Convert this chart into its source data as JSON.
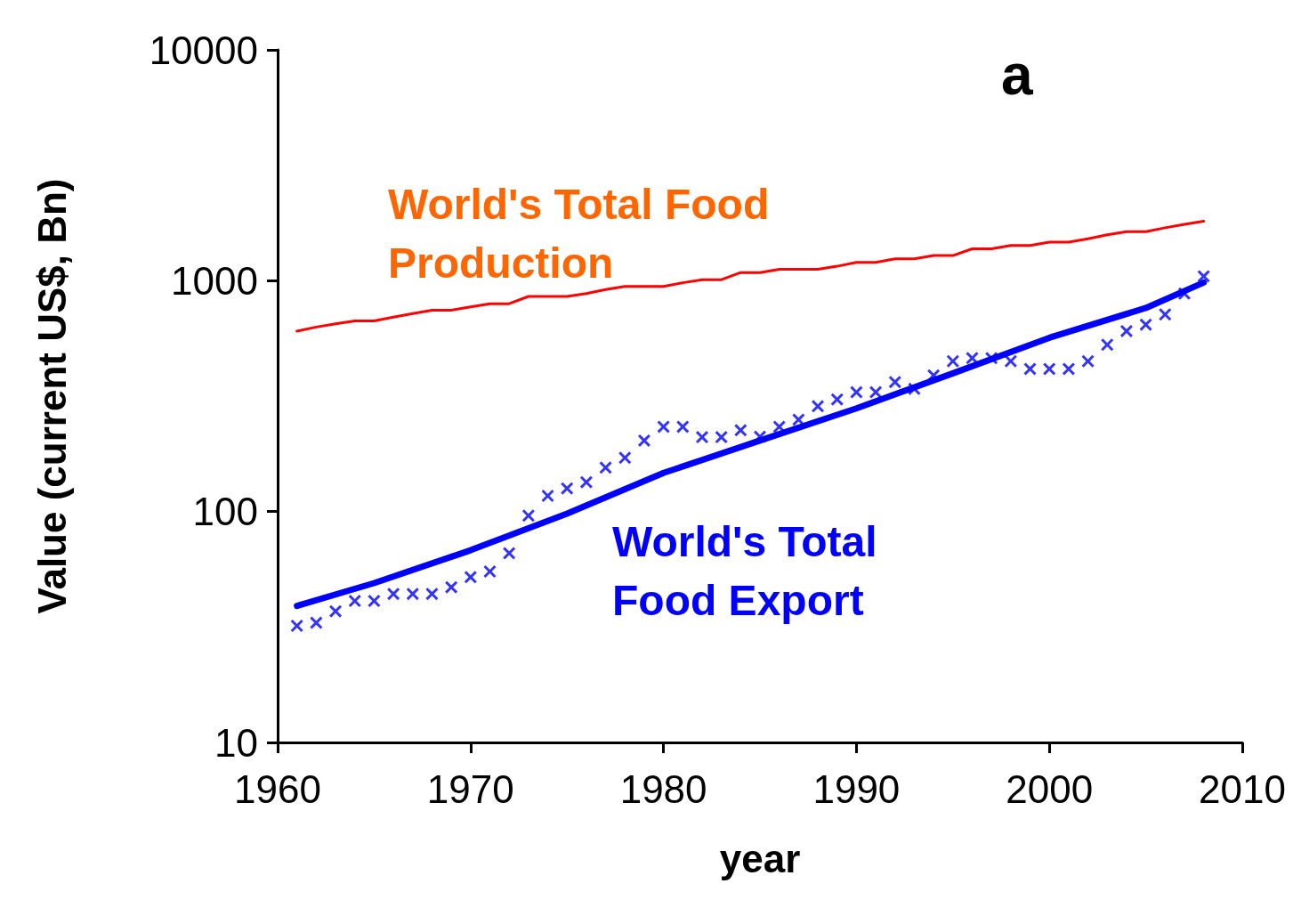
{
  "chart_data": {
    "type": "line",
    "xlabel": "year",
    "ylabel": "Value (current US$, Bn)",
    "annotations": [
      "a"
    ],
    "log": true,
    "grid": false,
    "legend": false,
    "xlim": [
      1960,
      2010
    ],
    "xticks": [
      1960,
      1970,
      1980,
      1990,
      2000,
      2010
    ],
    "ylim": [
      10,
      10000
    ],
    "yticks": [
      10,
      100,
      1000,
      10000
    ],
    "series": [
      {
        "name": "World's Total Food Production",
        "marker": "none",
        "color": "#ff0000",
        "x": [
          1961,
          1962,
          1963,
          1964,
          1965,
          1966,
          1967,
          1968,
          1969,
          1970,
          1971,
          1972,
          1973,
          1974,
          1975,
          1976,
          1977,
          1978,
          1979,
          1980,
          1981,
          1982,
          1983,
          1984,
          1985,
          1986,
          1987,
          1988,
          1989,
          1990,
          1991,
          1992,
          1993,
          1994,
          1995,
          1996,
          1997,
          1998,
          1999,
          2000,
          2001,
          2002,
          2003,
          2004,
          2005,
          2006,
          2007,
          2008
        ],
        "values": [
          605,
          630,
          650,
          670,
          670,
          695,
          720,
          745,
          745,
          770,
          795,
          795,
          855,
          855,
          855,
          880,
          915,
          945,
          945,
          945,
          980,
          1010,
          1010,
          1085,
          1085,
          1120,
          1120,
          1120,
          1155,
          1200,
          1200,
          1245,
          1245,
          1285,
          1285,
          1375,
          1375,
          1420,
          1420,
          1470,
          1470,
          1520,
          1580,
          1630,
          1630,
          1695,
          1755,
          1810
        ]
      },
      {
        "marker": "none",
        "color": "#0000ff",
        "x": [
          1961,
          1965,
          1970,
          1975,
          1980,
          1985,
          1990,
          1995,
          2000,
          2005,
          2008
        ],
        "values": [
          39,
          49,
          68,
          98,
          147,
          203,
          280,
          397,
          566,
          762,
          982
        ]
      },
      {
        "name": "World's Total Food Export",
        "type": "scatter",
        "marker": "cross",
        "color": "#0000ff",
        "x": [
          1961,
          1962,
          1963,
          1964,
          1965,
          1966,
          1967,
          1968,
          1969,
          1970,
          1971,
          1972,
          1973,
          1974,
          1975,
          1976,
          1977,
          1978,
          1979,
          1980,
          1981,
          1982,
          1983,
          1984,
          1985,
          1986,
          1987,
          1988,
          1989,
          1990,
          1991,
          1992,
          1993,
          1994,
          1995,
          1996,
          1997,
          1998,
          1999,
          2000,
          2001,
          2002,
          2003,
          2004,
          2005,
          2006,
          2007,
          2008
        ],
        "values": [
          32,
          33,
          37,
          41,
          41,
          44,
          44,
          44,
          47,
          52,
          55,
          66,
          96,
          117,
          126,
          134,
          155,
          171,
          203,
          233,
          233,
          210,
          210,
          225,
          211,
          233,
          250,
          286,
          306,
          329,
          329,
          364,
          340,
          389,
          448,
          462,
          462,
          448,
          415,
          415,
          415,
          448,
          528,
          605,
          645,
          714,
          879,
          1045
        ]
      }
    ]
  }
}
